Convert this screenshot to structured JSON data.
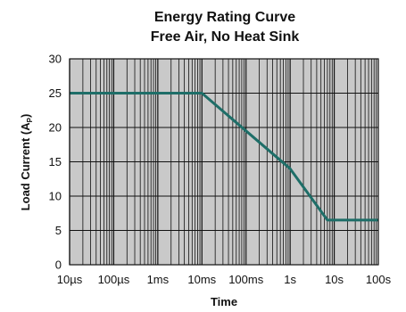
{
  "chart_data": {
    "type": "line",
    "title": "Energy Rating Curve",
    "subtitle": "Free Air, No Heat Sink",
    "xlabel": "Time",
    "ylabel": "Load Current (A",
    "ylabel_sub": "P",
    "ylabel_close": ")",
    "x_scale": "log",
    "xlim": [
      "10µs",
      "100s"
    ],
    "ylim": [
      0,
      30
    ],
    "grid": true,
    "x_ticks": [
      {
        "value": 1e-05,
        "label": "10µs"
      },
      {
        "value": 0.0001,
        "label": "100µs"
      },
      {
        "value": 0.001,
        "label": "1ms"
      },
      {
        "value": 0.01,
        "label": "10ms"
      },
      {
        "value": 0.1,
        "label": "100ms"
      },
      {
        "value": 1,
        "label": "1s"
      },
      {
        "value": 10,
        "label": "10s"
      },
      {
        "value": 100,
        "label": "100s"
      }
    ],
    "y_ticks": [
      0,
      5,
      10,
      15,
      20,
      25,
      30
    ],
    "series": [
      {
        "color": "#1e6e68",
        "points": [
          {
            "x": 1e-05,
            "y": 25
          },
          {
            "x": 0.0001,
            "y": 25
          },
          {
            "x": 0.001,
            "y": 25
          },
          {
            "x": 0.01,
            "y": 25
          },
          {
            "x": 0.1,
            "y": 19.5
          },
          {
            "x": 1,
            "y": 14
          },
          {
            "x": 7,
            "y": 6.5
          },
          {
            "x": 100,
            "y": 6.5
          }
        ]
      }
    ],
    "colors": {
      "plot_background": "#c9c9c9",
      "grid_line": "#111111",
      "curve": "#1e6e68"
    }
  }
}
